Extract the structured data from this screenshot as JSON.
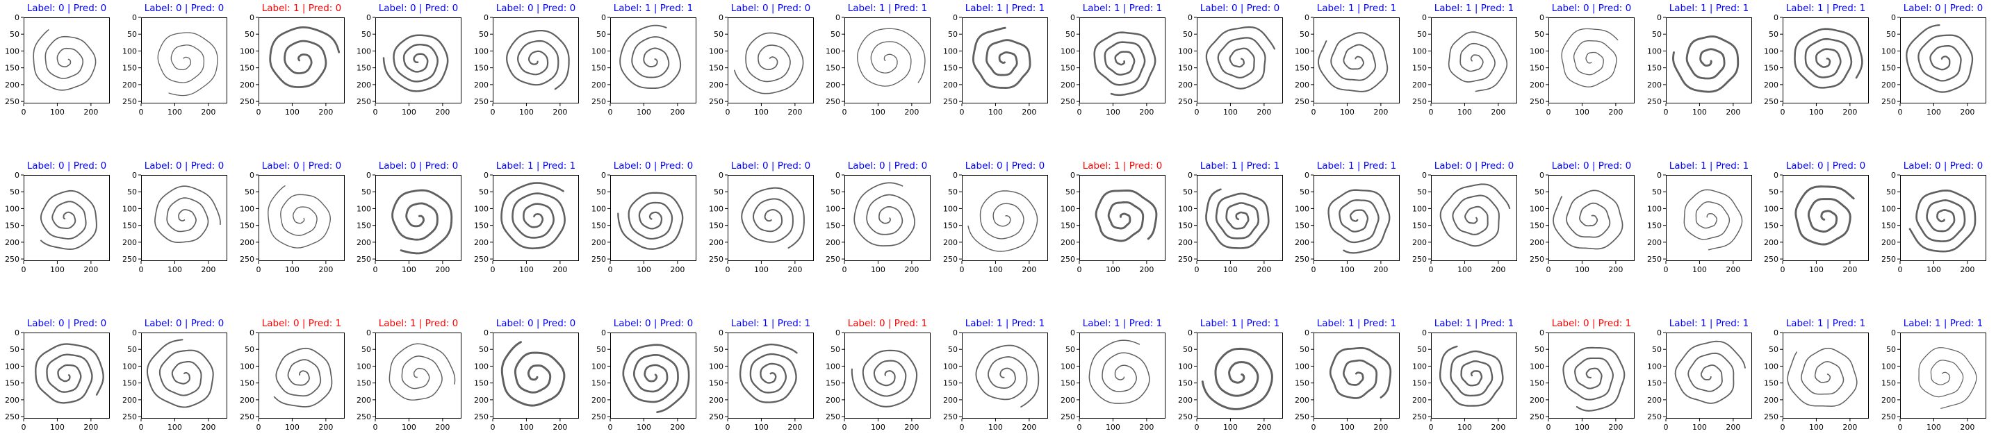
{
  "chart_data": {
    "type": "image-grid",
    "rows": 3,
    "cols": 17,
    "title_format": "Label: {label} | Pred: {pred}",
    "colors": {
      "correct": "#0000ff",
      "incorrect": "#ff0000",
      "stroke": "#444444",
      "frame": "#000000"
    },
    "axes": {
      "x_ticks": [
        0,
        100,
        200
      ],
      "y_ticks": [
        0,
        50,
        100,
        150,
        200,
        250
      ],
      "xlim": [
        0,
        256
      ],
      "ylim": [
        256,
        0
      ]
    },
    "panels": [
      {
        "label": 0,
        "pred": 0,
        "title": "Label: 0 | Pred: 0",
        "correct": true
      },
      {
        "label": 0,
        "pred": 0,
        "title": "Label: 0 | Pred: 0",
        "correct": true
      },
      {
        "label": 1,
        "pred": 0,
        "title": "Label: 1 | Pred: 0",
        "correct": false
      },
      {
        "label": 0,
        "pred": 0,
        "title": "Label: 0 | Pred: 0",
        "correct": true
      },
      {
        "label": 0,
        "pred": 0,
        "title": "Label: 0 | Pred: 0",
        "correct": true
      },
      {
        "label": 1,
        "pred": 1,
        "title": "Label: 1 | Pred: 1",
        "correct": true
      },
      {
        "label": 0,
        "pred": 0,
        "title": "Label: 0 | Pred: 0",
        "correct": true
      },
      {
        "label": 1,
        "pred": 1,
        "title": "Label: 1 | Pred: 1",
        "correct": true
      },
      {
        "label": 1,
        "pred": 1,
        "title": "Label: 1 | Pred: 1",
        "correct": true
      },
      {
        "label": 1,
        "pred": 1,
        "title": "Label: 1 | Pred: 1",
        "correct": true
      },
      {
        "label": 0,
        "pred": 0,
        "title": "Label: 0 | Pred: 0",
        "correct": true
      },
      {
        "label": 1,
        "pred": 1,
        "title": "Label: 1 | Pred: 1",
        "correct": true
      },
      {
        "label": 1,
        "pred": 1,
        "title": "Label: 1 | Pred: 1",
        "correct": true
      },
      {
        "label": 0,
        "pred": 0,
        "title": "Label: 0 | Pred: 0",
        "correct": true
      },
      {
        "label": 1,
        "pred": 1,
        "title": "Label: 1 | Pred: 1",
        "correct": true
      },
      {
        "label": 1,
        "pred": 1,
        "title": "Label: 1 | Pred: 1",
        "correct": true
      },
      {
        "label": 0,
        "pred": 0,
        "title": "Label: 0 | Pred: 0",
        "correct": true
      },
      {
        "label": 0,
        "pred": 0,
        "title": "Label: 0 | Pred: 0",
        "correct": true
      },
      {
        "label": 0,
        "pred": 0,
        "title": "Label: 0 | Pred: 0",
        "correct": true
      },
      {
        "label": 0,
        "pred": 0,
        "title": "Label: 0 | Pred: 0",
        "correct": true
      },
      {
        "label": 0,
        "pred": 0,
        "title": "Label: 0 | Pred: 0",
        "correct": true
      },
      {
        "label": 1,
        "pred": 1,
        "title": "Label: 1 | Pred: 1",
        "correct": true
      },
      {
        "label": 0,
        "pred": 0,
        "title": "Label: 0 | Pred: 0",
        "correct": true
      },
      {
        "label": 0,
        "pred": 0,
        "title": "Label: 0 | Pred: 0",
        "correct": true
      },
      {
        "label": 0,
        "pred": 0,
        "title": "Label: 0 | Pred: 0",
        "correct": true
      },
      {
        "label": 0,
        "pred": 0,
        "title": "Label: 0 | Pred: 0",
        "correct": true
      },
      {
        "label": 1,
        "pred": 0,
        "title": "Label: 1 | Pred: 0",
        "correct": false
      },
      {
        "label": 1,
        "pred": 1,
        "title": "Label: 1 | Pred: 1",
        "correct": true
      },
      {
        "label": 1,
        "pred": 1,
        "title": "Label: 1 | Pred: 1",
        "correct": true
      },
      {
        "label": 0,
        "pred": 0,
        "title": "Label: 0 | Pred: 0",
        "correct": true
      },
      {
        "label": 0,
        "pred": 0,
        "title": "Label: 0 | Pred: 0",
        "correct": true
      },
      {
        "label": 1,
        "pred": 1,
        "title": "Label: 1 | Pred: 1",
        "correct": true
      },
      {
        "label": 0,
        "pred": 0,
        "title": "Label: 0 | Pred: 0",
        "correct": true
      },
      {
        "label": 0,
        "pred": 0,
        "title": "Label: 0 | Pred: 0",
        "correct": true
      },
      {
        "label": 0,
        "pred": 0,
        "title": "Label: 0 | Pred: 0",
        "correct": true
      },
      {
        "label": 0,
        "pred": 0,
        "title": "Label: 0 | Pred: 0",
        "correct": true
      },
      {
        "label": 0,
        "pred": 1,
        "title": "Label: 0 | Pred: 1",
        "correct": false
      },
      {
        "label": 1,
        "pred": 0,
        "title": "Label: 1 | Pred: 0",
        "correct": false
      },
      {
        "label": 0,
        "pred": 0,
        "title": "Label: 0 | Pred: 0",
        "correct": true
      },
      {
        "label": 0,
        "pred": 0,
        "title": "Label: 0 | Pred: 0",
        "correct": true
      },
      {
        "label": 1,
        "pred": 1,
        "title": "Label: 1 | Pred: 1",
        "correct": true
      },
      {
        "label": 0,
        "pred": 1,
        "title": "Label: 0 | Pred: 1",
        "correct": false
      },
      {
        "label": 1,
        "pred": 1,
        "title": "Label: 1 | Pred: 1",
        "correct": true
      },
      {
        "label": 1,
        "pred": 1,
        "title": "Label: 1 | Pred: 1",
        "correct": true
      },
      {
        "label": 1,
        "pred": 1,
        "title": "Label: 1 | Pred: 1",
        "correct": true
      },
      {
        "label": 1,
        "pred": 1,
        "title": "Label: 1 | Pred: 1",
        "correct": true
      },
      {
        "label": 1,
        "pred": 1,
        "title": "Label: 1 | Pred: 1",
        "correct": true
      },
      {
        "label": 0,
        "pred": 1,
        "title": "Label: 0 | Pred: 1",
        "correct": false
      },
      {
        "label": 1,
        "pred": 1,
        "title": "Label: 1 | Pred: 1",
        "correct": true
      },
      {
        "label": 1,
        "pred": 1,
        "title": "Label: 1 | Pred: 1",
        "correct": true
      },
      {
        "label": 1,
        "pred": 1,
        "title": "Label: 1 | Pred: 1",
        "correct": true
      }
    ]
  }
}
